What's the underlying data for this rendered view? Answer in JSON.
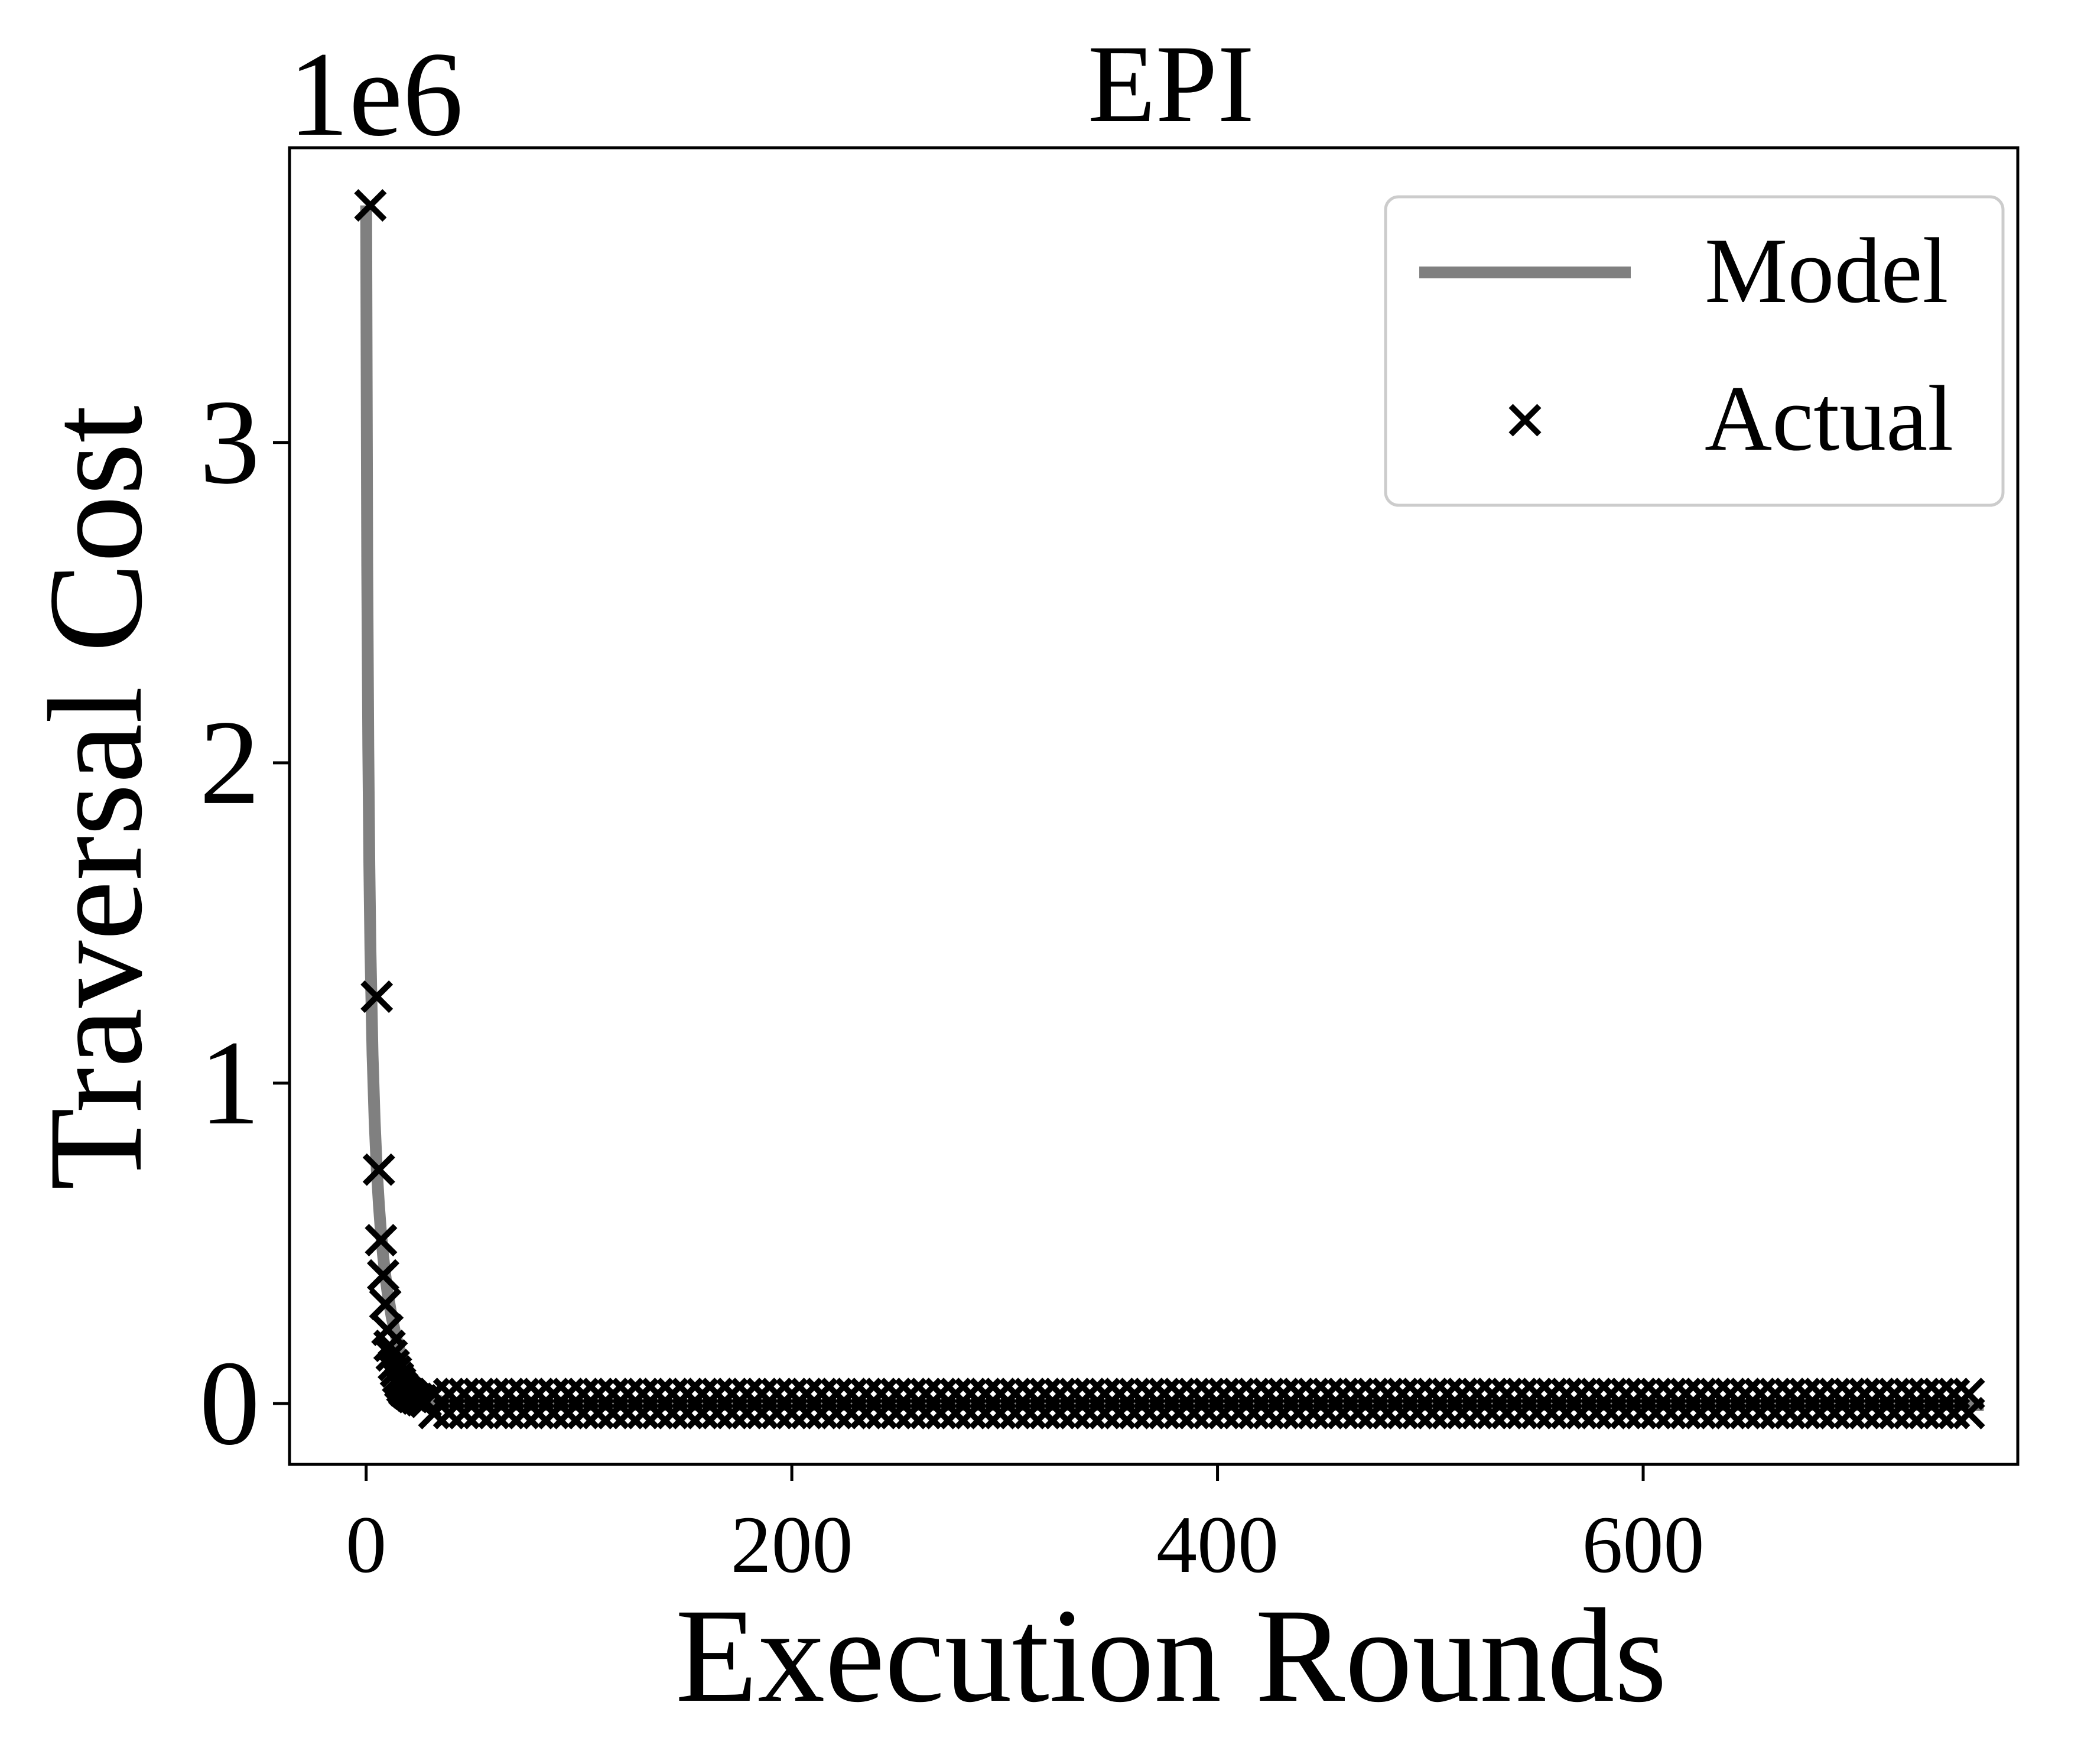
{
  "chart_data": {
    "type": "scatter",
    "title": "EPI",
    "xlabel": "Execution Rounds",
    "ylabel": "Traversal Cost",
    "y_offset_text": "1e6",
    "xlim": [
      -36,
      776
    ],
    "ylim": [
      -0.19,
      3.92
    ],
    "x_ticks": [
      0,
      200,
      400,
      600
    ],
    "x_tick_labels": [
      "0",
      "200",
      "400",
      "600"
    ],
    "y_ticks": [
      0,
      1,
      2,
      3
    ],
    "y_tick_labels": [
      "0",
      "1",
      "2",
      "3"
    ],
    "grid": false,
    "legend": {
      "position": "top-right",
      "entries": [
        {
          "label": "Model",
          "kind": "line",
          "color": "#808080"
        },
        {
          "label": "Actual",
          "kind": "marker",
          "color": "#000000"
        }
      ]
    },
    "colors": {
      "model": "#808080",
      "actual": "#000000",
      "axes": "#000000",
      "legend_border": "#cccccc"
    },
    "series": [
      {
        "name": "Model",
        "kind": "line",
        "x": [
          0,
          0.5,
          1,
          1.5,
          2,
          3,
          4,
          5,
          6,
          7,
          8,
          9,
          10,
          11,
          12,
          13,
          14,
          15,
          16,
          18,
          20,
          22,
          25,
          28,
          32,
          36,
          40,
          50,
          60,
          80,
          100,
          150,
          200,
          300,
          400,
          500,
          600,
          700,
          760
        ],
        "y": [
          3.74,
          2.62,
          2.05,
          1.68,
          1.42,
          1.09,
          0.88,
          0.73,
          0.62,
          0.53,
          0.46,
          0.4,
          0.35,
          0.31,
          0.27,
          0.24,
          0.21,
          0.185,
          0.16,
          0.12,
          0.09,
          0.065,
          0.04,
          0.025,
          0.012,
          0.005,
          0.001,
          -0.003,
          -0.004,
          -0.005,
          -0.005,
          -0.005,
          -0.005,
          -0.005,
          -0.005,
          -0.005,
          -0.005,
          -0.005,
          -0.005
        ]
      },
      {
        "name": "Actual",
        "kind": "scatter",
        "x": [
          2,
          5,
          6,
          7,
          8,
          9,
          10,
          11,
          12,
          13,
          14,
          15,
          16,
          17,
          18,
          19,
          20,
          21,
          22,
          24,
          26,
          28
        ],
        "y": [
          3.74,
          1.27,
          0.73,
          0.51,
          0.4,
          0.31,
          0.23,
          0.18,
          0.15,
          0.12,
          0.1,
          0.08,
          0.065,
          0.05,
          0.04,
          0.035,
          0.03,
          0.025,
          0.02,
          0.015,
          0.01,
          0.005
        ],
        "band_x_start": 32,
        "band_x_end": 758,
        "band_x_step": 7,
        "band_y_low": -0.03,
        "band_y_high": 0.03
      }
    ]
  }
}
